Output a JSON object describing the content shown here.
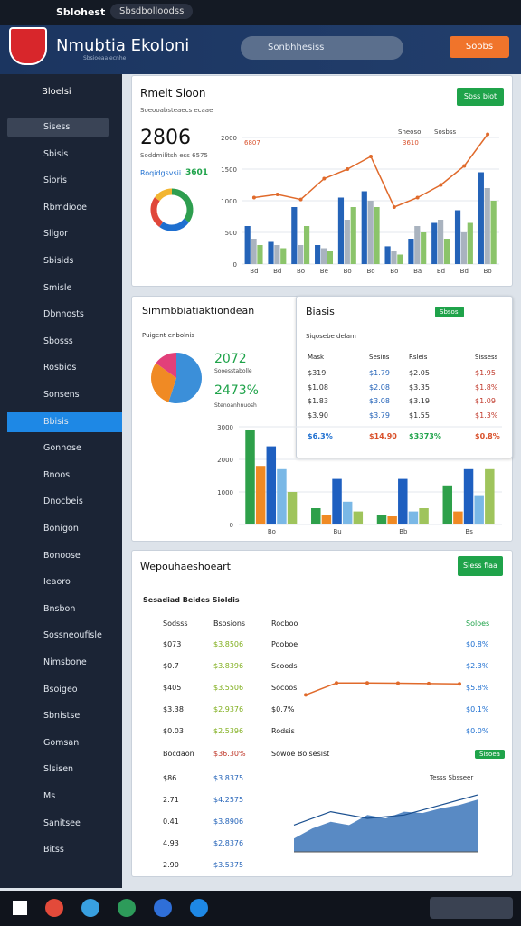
{
  "topbar": {
    "app": "Sblohest",
    "tab": "Sbsdbolloodss"
  },
  "header": {
    "title": "Nmubtia Ekoloni",
    "subtitle": "Sbsioeaa ecnhe",
    "search": "Sonbhhesiss",
    "button": "Soobs"
  },
  "sidebar": {
    "user": "Bloelsi",
    "active": 11,
    "items": [
      "Sisess",
      "Sbisis",
      "Sioris",
      "Rbmdiooe",
      "Sligor",
      "Sbisids",
      "Smisle",
      "Dbnnosts",
      "Sbosss",
      "Rosbios",
      "Sonsens",
      "Bbisis",
      "Gonnose",
      "Bnoos",
      "Dnocbeis",
      "Bonigon",
      "Bonoose",
      "Ieaoro",
      "Bnsbon",
      "Sossneoufisle",
      "Nimsbone",
      "Bsoigeo",
      "Sbnistse",
      "Gomsan",
      "Slsisen",
      "Ms",
      "Sanitsee",
      "Bitss"
    ]
  },
  "card1": {
    "title": "Rmeit Sioon",
    "subtitle": "Soeooabsteaecs ecaae",
    "button": "Sbss biot",
    "big": "2806",
    "line": "Soddmilitsh ess 6575",
    "label": "Roqidgsvsii",
    "label_value": "3601",
    "donut": {
      "type": "pie",
      "values": [
        35,
        25,
        25,
        15
      ],
      "colors": [
        "#2e9e4f",
        "#1e6fd0",
        "#e0473a",
        "#f2b530"
      ]
    },
    "chart": {
      "type": "bar",
      "categories": [
        "Bd",
        "Bd",
        "Bo",
        "Be",
        "Bo",
        "Bo",
        "Bo",
        "Ba",
        "Bd",
        "Bd",
        "Bo"
      ],
      "ylim": [
        0,
        2000
      ],
      "yticks": [
        0,
        500,
        1000,
        1500,
        2000
      ],
      "annotations": [
        "6807",
        "3610",
        "Sneoso",
        "Sosbss"
      ],
      "series": [
        {
          "name": "blue",
          "color": "#2463b8",
          "values": [
            600,
            350,
            900,
            300,
            1050,
            1150,
            280,
            400,
            650,
            850,
            1450
          ]
        },
        {
          "name": "gray",
          "color": "#a9b3bf",
          "values": [
            400,
            300,
            300,
            250,
            700,
            1000,
            200,
            600,
            700,
            500,
            1200
          ]
        },
        {
          "name": "green",
          "color": "#8bc46a",
          "values": [
            300,
            250,
            600,
            200,
            900,
            900,
            150,
            500,
            400,
            650,
            1000
          ]
        }
      ],
      "line": {
        "color": "#e06a2b",
        "values": [
          1050,
          1100,
          1020,
          1350,
          1500,
          1700,
          900,
          1050,
          1250,
          1550,
          2050
        ]
      }
    }
  },
  "card2": {
    "title": "Simmbbiatiaktiondean",
    "subtitle": "Puigent enbolnis",
    "kpi1": "2072",
    "kpi1_label": "Sooesstabolle",
    "kpi2": "2473%",
    "kpi2_label": "Stenoanhnuosh",
    "pie": {
      "type": "pie",
      "values": [
        55,
        30,
        15
      ],
      "colors": [
        "#3b8fd9",
        "#f08a24",
        "#e2407a"
      ]
    },
    "chart": {
      "type": "bar",
      "categories": [
        "Bo",
        "Bu",
        "Bb",
        "Bs"
      ],
      "ylim": [
        0,
        3000
      ],
      "yticks": [
        0,
        1000,
        2000,
        3000
      ],
      "series": [
        {
          "name": "green",
          "color": "#2ea04a",
          "values": [
            2900,
            500,
            300,
            1200
          ]
        },
        {
          "name": "orange",
          "color": "#f08a24",
          "values": [
            1800,
            300,
            250,
            400
          ]
        },
        {
          "name": "blue",
          "color": "#1e5fc0",
          "values": [
            2400,
            1400,
            1400,
            1700
          ]
        },
        {
          "name": "light",
          "color": "#7ab8e6",
          "values": [
            1700,
            700,
            400,
            900
          ]
        },
        {
          "name": "olive",
          "color": "#9fc45c",
          "values": [
            1000,
            400,
            500,
            1700
          ]
        }
      ]
    }
  },
  "card3": {
    "title": "Biasis",
    "badge": "Sbsosi",
    "subtitle": "Siqosebe delam",
    "columns": [
      "Mask",
      "Sesins",
      "Rsleis",
      "Sissess"
    ],
    "rows": [
      [
        "$319",
        "$1.79",
        "$2.05",
        "$1.95"
      ],
      [
        "$1.08",
        "$2.08",
        "$3.35",
        "$1.8%"
      ],
      [
        "$1.83",
        "$3.08",
        "$3.19",
        "$1.09"
      ],
      [
        "$3.90",
        "$3.79",
        "$1.55",
        "$1.3%"
      ]
    ],
    "footer": [
      "$6.3%",
      "$14.90",
      "$3373%",
      "$0.8%"
    ]
  },
  "card4": {
    "title": "Wepouhaeshoeart",
    "button": "Siess fiaa",
    "section": "Sesadiad Beides Sioldis",
    "columns": [
      "Sodsss",
      "Bsosions",
      "Rocboo",
      "Soloes"
    ],
    "rows": [
      [
        "$073",
        "$3.8506",
        "Pooboe",
        "$0.8%"
      ],
      [
        "$0.7",
        "$3.8396",
        "Scoods",
        "$2.3%"
      ],
      [
        "$405",
        "$3.5506",
        "Socoos",
        "$5.8%"
      ],
      [
        "$3.38",
        "$2.9376",
        "$0.7%",
        "$0.1%"
      ],
      [
        "$0.03",
        "$2.5396",
        "Rodsis",
        "$0.0%"
      ]
    ],
    "band": [
      "Bocdaon",
      "$36.30%",
      "Sowoe Boisesist"
    ],
    "band_button": "Sisoea",
    "rows2": [
      [
        "$86",
        "$3.8375"
      ],
      [
        "2.71",
        "$4.2575"
      ],
      [
        "0.41",
        "$3.8906"
      ],
      [
        "4.93",
        "$2.8376"
      ],
      [
        "2.90",
        "$3.5375"
      ]
    ],
    "area_label": "Tesss Sbsseer",
    "line": {
      "type": "line",
      "color": "#e06a2b",
      "ylim": [
        0,
        100
      ],
      "values": [
        20,
        60,
        60,
        59,
        58,
        57
      ]
    },
    "area": {
      "type": "area",
      "color": "#2f6db5",
      "ylim": [
        0,
        100
      ],
      "values": [
        20,
        35,
        45,
        40,
        55,
        50,
        60,
        58,
        65,
        70,
        78
      ],
      "line": [
        40,
        60,
        50,
        55,
        70,
        85
      ]
    }
  }
}
